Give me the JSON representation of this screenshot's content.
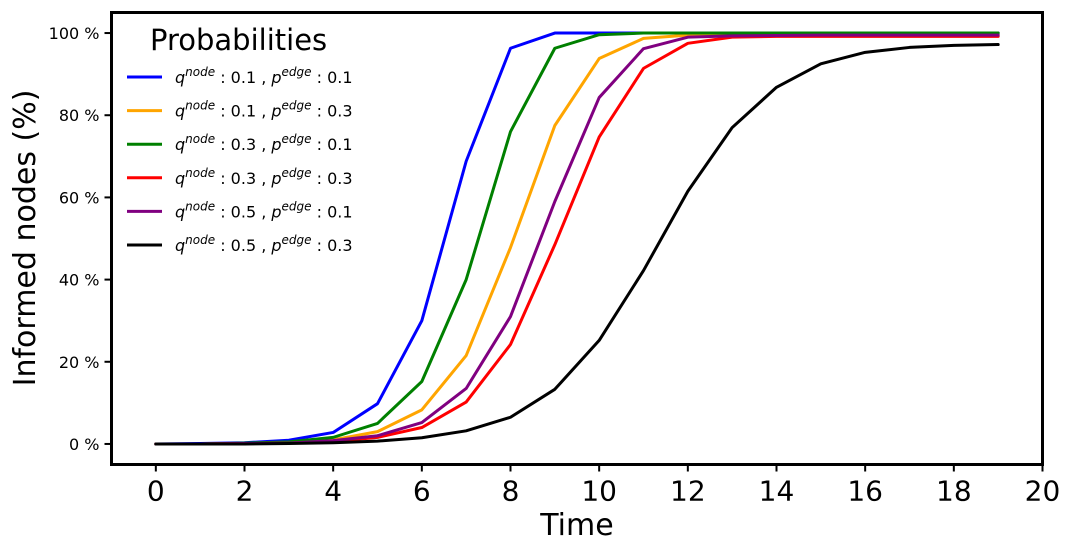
{
  "chart_data": {
    "type": "line",
    "xlabel": "Time",
    "ylabel": "Informed nodes (%)",
    "xlim": [
      -1,
      20
    ],
    "ylim": [
      -5,
      105
    ],
    "xticks": [
      0,
      2,
      4,
      6,
      8,
      10,
      12,
      14,
      16,
      18,
      20
    ],
    "xtick_labels": [
      "0",
      "2",
      "4",
      "6",
      "8",
      "10",
      "12",
      "14",
      "16",
      "18",
      "20"
    ],
    "yticks": [
      0,
      20,
      40,
      60,
      80,
      100
    ],
    "ytick_labels": [
      "0 %",
      "20 %",
      "40 %",
      "60 %",
      "80 %",
      "100 %"
    ],
    "grid": false,
    "legend": {
      "title": "Probabilities",
      "placement": "top-left"
    },
    "x": [
      0,
      1,
      2,
      3,
      4,
      5,
      6,
      7,
      8,
      9,
      10,
      11,
      12,
      13,
      14,
      15,
      16,
      17,
      18,
      19
    ],
    "series": [
      {
        "name": "q^node : 0.1 , p^edge : 0.1",
        "q_value": "0.1",
        "p_value": "0.1",
        "color": "#0000ff",
        "values": [
          0,
          0.1,
          0.3,
          0.9,
          2.8,
          9.8,
          30.0,
          68.8,
          96.3,
          100,
          100,
          100,
          100,
          100,
          100,
          100,
          100,
          100,
          100,
          100
        ]
      },
      {
        "name": "q^node : 0.1 , p^edge : 0.3",
        "q_value": "0.1",
        "p_value": "0.3",
        "color": "#ffa500",
        "values": [
          0,
          0,
          0.1,
          0.3,
          1.0,
          3.0,
          8.3,
          21.5,
          47.8,
          77.5,
          93.8,
          98.7,
          99.5,
          99.6,
          99.6,
          99.6,
          99.6,
          99.6,
          99.6,
          99.6
        ]
      },
      {
        "name": "q^node : 0.3 , p^edge : 0.1",
        "q_value": "0.3",
        "p_value": "0.1",
        "color": "#008000",
        "values": [
          0,
          0,
          0.2,
          0.5,
          1.6,
          5.0,
          15.2,
          40.0,
          76.0,
          96.3,
          99.6,
          100,
          100,
          100,
          100,
          100,
          100,
          100,
          100,
          100
        ]
      },
      {
        "name": "q^node : 0.3 , p^edge : 0.3",
        "q_value": "0.3",
        "p_value": "0.3",
        "color": "#ff0000",
        "values": [
          0,
          0,
          0.1,
          0.2,
          0.6,
          1.6,
          4.0,
          10.2,
          24.2,
          48.5,
          74.7,
          91.4,
          97.5,
          99.0,
          99.2,
          99.2,
          99.2,
          99.2,
          99.2,
          99.2
        ]
      },
      {
        "name": "q^node : 0.5 , p^edge : 0.1",
        "q_value": "0.5",
        "p_value": "0.1",
        "color": "#800080",
        "values": [
          0,
          0,
          0.1,
          0.2,
          0.8,
          2.0,
          5.2,
          13.5,
          31.0,
          59.0,
          84.3,
          96.2,
          99.0,
          99.3,
          99.4,
          99.5,
          99.5,
          99.5,
          99.5,
          99.5
        ]
      },
      {
        "name": "q^node : 0.5 , p^edge : 0.3",
        "q_value": "0.5",
        "p_value": "0.3",
        "color": "#000000",
        "values": [
          0,
          0,
          0,
          0.1,
          0.3,
          0.7,
          1.5,
          3.2,
          6.5,
          13.3,
          25.2,
          42.2,
          61.5,
          77.0,
          86.8,
          92.5,
          95.3,
          96.5,
          97.0,
          97.2
        ]
      }
    ]
  }
}
